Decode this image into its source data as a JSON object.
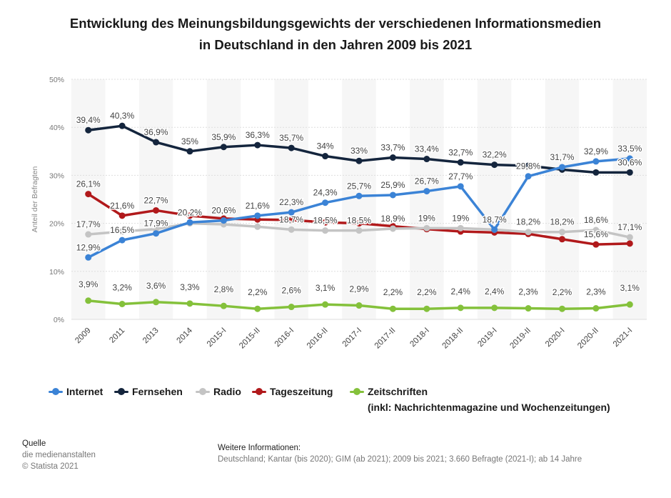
{
  "title": {
    "line1": "Entwicklung des Meinungsbildungsgewichts der verschiedenen Informationsmedien",
    "line2": "in Deutschland in den Jahren 2009 bis 2021"
  },
  "chart_data": {
    "type": "line",
    "ylabel": "Anteil der Befragten",
    "ylim": [
      0,
      50
    ],
    "yticks": [
      "0%",
      "10%",
      "20%",
      "30%",
      "40%",
      "50%"
    ],
    "grid": true,
    "legend_position": "bottom",
    "categories": [
      "2009",
      "2011",
      "2013",
      "2014",
      "2015-I",
      "2015-II",
      "2016-I",
      "2016-II",
      "2017-I",
      "2017-II",
      "2018-I",
      "2018-II",
      "2019-I",
      "2019-II",
      "2020-I",
      "2020-II",
      "2021-I"
    ],
    "series": [
      {
        "name": "Internet",
        "color": "#3b83d6",
        "values": [
          12.9,
          16.5,
          17.9,
          20.2,
          20.6,
          21.6,
          22.3,
          24.3,
          25.7,
          25.9,
          26.7,
          27.7,
          18.7,
          29.8,
          31.7,
          32.9,
          33.5
        ],
        "labels": [
          "12,9%",
          "16,5%",
          "17,9%",
          "20,2%",
          "20,6%",
          "21,6%",
          "22,3%",
          "24,3%",
          "25,7%",
          "25,9%",
          "26,7%",
          "27,7%",
          "18,7%",
          "29,8%",
          "31,7%",
          "32,9%",
          "33,5%"
        ]
      },
      {
        "name": "Fernsehen",
        "color": "#14253d",
        "values": [
          39.4,
          40.3,
          36.9,
          35.0,
          35.9,
          36.3,
          35.7,
          34.0,
          33.0,
          33.7,
          33.4,
          32.7,
          32.2,
          32.0,
          31.2,
          30.6,
          30.6
        ],
        "labels": [
          "39,4%",
          "40,3%",
          "36,9%",
          "35%",
          "35,9%",
          "36,3%",
          "35,7%",
          "34%",
          "33%",
          "33,7%",
          "33,4%",
          "32,7%",
          "32,2%",
          null,
          null,
          null,
          "30,6%"
        ]
      },
      {
        "name": "Radio",
        "color": "#c4c4c4",
        "values": [
          17.7,
          18.3,
          18.8,
          20.0,
          19.8,
          19.3,
          18.7,
          18.5,
          18.5,
          18.9,
          19.0,
          19.0,
          18.7,
          18.2,
          18.2,
          18.6,
          17.1
        ],
        "labels": [
          "17,7%",
          null,
          null,
          null,
          null,
          null,
          "18,7%",
          "18,5%",
          "18,5%",
          "18,9%",
          "19%",
          "19%",
          null,
          "18,2%",
          "18,2%",
          "18,6%",
          "17,1%"
        ]
      },
      {
        "name": "Tageszeitung",
        "color": "#b1191b",
        "values": [
          26.1,
          21.6,
          22.7,
          21.6,
          21.0,
          20.8,
          20.7,
          20.2,
          20.0,
          19.4,
          18.8,
          18.3,
          18.1,
          17.8,
          16.7,
          15.6,
          15.8
        ],
        "labels": [
          "26,1%",
          "21,6%",
          "22,7%",
          null,
          null,
          null,
          null,
          null,
          null,
          null,
          null,
          null,
          null,
          null,
          null,
          "15,6%",
          null
        ]
      },
      {
        "name": "Zeitschriften",
        "color": "#84c13b",
        "values": [
          3.9,
          3.2,
          3.6,
          3.3,
          2.8,
          2.2,
          2.6,
          3.1,
          2.9,
          2.2,
          2.2,
          2.4,
          2.4,
          2.3,
          2.2,
          2.3,
          3.1
        ],
        "labels": [
          "3,9%",
          "3,2%",
          "3,6%",
          "3,3%",
          "2,8%",
          "2,2%",
          "2,6%",
          "3,1%",
          "2,9%",
          "2,2%",
          "2,2%",
          "2,4%",
          "2,4%",
          "2,3%",
          "2,2%",
          "2,3%",
          "3,1%"
        ]
      }
    ]
  },
  "legend": {
    "items": [
      "Internet",
      "Fernsehen",
      "Radio",
      "Tageszeitung",
      "Zeitschriften"
    ],
    "note": "(inkl: Nachrichtenmagazine und Wochenzeitungen)"
  },
  "footer": {
    "source_heading": "Quelle",
    "source_line1": "die medienanstalten",
    "source_line2": "© Statista 2021",
    "info_heading": "Weitere Informationen:",
    "info_text": "Deutschland; Kantar (bis 2020); GIM (ab 2021); 2009 bis 2021; 3.660 Befragte (2021-I); ab 14 Jahre"
  }
}
